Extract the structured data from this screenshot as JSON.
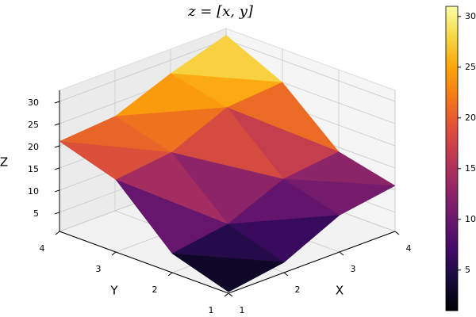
{
  "chart_data": {
    "type": "surface",
    "title": "z = [x, y]",
    "xlabel": "X",
    "ylabel": "Y",
    "zlabel": "Z",
    "x": [
      1,
      2,
      3,
      4
    ],
    "y": [
      1,
      2,
      3,
      4
    ],
    "z": [
      [
        1,
        3,
        9,
        11
      ],
      [
        5,
        7,
        12.5,
        14
      ],
      [
        17,
        18.5,
        24,
        25
      ],
      [
        21,
        22,
        27,
        31
      ]
    ],
    "xlim": [
      1,
      4
    ],
    "ylim": [
      1,
      4
    ],
    "zlim": [
      0.7,
      32.5
    ],
    "xticks": [
      1,
      2,
      3,
      4
    ],
    "yticks": [
      1,
      2,
      3,
      4
    ],
    "zticks": [
      5,
      10,
      15,
      20,
      25,
      30
    ],
    "colormap": "inferno",
    "clim": [
      1,
      31
    ],
    "cticks": [
      5,
      10,
      15,
      20,
      25,
      30
    ],
    "grid": true
  }
}
